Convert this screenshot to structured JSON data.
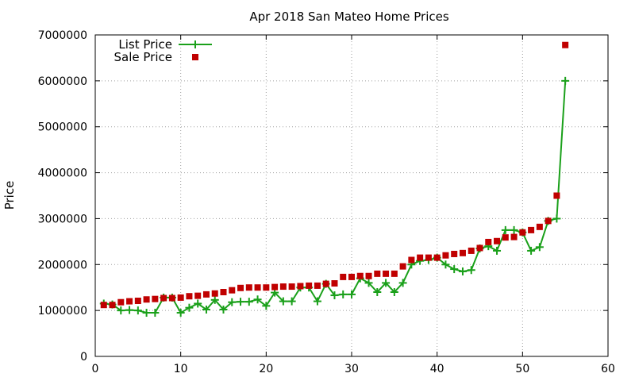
{
  "chart_data": {
    "type": "line",
    "title": "Apr 2018 San Mateo Home Prices",
    "xlabel": "",
    "ylabel": "Price",
    "xlim": [
      0,
      60
    ],
    "ylim": [
      0,
      7000000
    ],
    "xticks": [
      0,
      10,
      20,
      30,
      40,
      50,
      60
    ],
    "yticks": [
      0,
      1000000,
      2000000,
      3000000,
      4000000,
      5000000,
      6000000,
      7000000
    ],
    "grid": true,
    "legend_position": "top-left",
    "colors": {
      "list_price": "#1aa01a",
      "sale_price": "#c00000"
    },
    "series": [
      {
        "name": "List Price",
        "style": "line+plus",
        "x": [
          1,
          2,
          3,
          4,
          5,
          6,
          7,
          8,
          9,
          10,
          11,
          12,
          13,
          14,
          15,
          16,
          17,
          18,
          19,
          20,
          21,
          22,
          23,
          24,
          25,
          26,
          27,
          28,
          29,
          30,
          31,
          32,
          33,
          34,
          35,
          36,
          37,
          38,
          39,
          40,
          41,
          42,
          43,
          44,
          45,
          46,
          47,
          48,
          49,
          50,
          51,
          52,
          53,
          54,
          55
        ],
        "y": [
          1150000,
          1130000,
          1000000,
          1010000,
          1000000,
          950000,
          950000,
          1280000,
          1280000,
          950000,
          1060000,
          1150000,
          1020000,
          1230000,
          1020000,
          1180000,
          1190000,
          1190000,
          1240000,
          1100000,
          1390000,
          1200000,
          1200000,
          1500000,
          1500000,
          1200000,
          1580000,
          1330000,
          1350000,
          1350000,
          1700000,
          1600000,
          1400000,
          1600000,
          1400000,
          1600000,
          2000000,
          2080000,
          2100000,
          2150000,
          2000000,
          1900000,
          1850000,
          1880000,
          2350000,
          2400000,
          2300000,
          2750000,
          2750000,
          2700000,
          2300000,
          2380000,
          2950000,
          3000000,
          6000000
        ]
      },
      {
        "name": "Sale Price",
        "style": "square",
        "x": [
          1,
          2,
          3,
          4,
          5,
          6,
          7,
          8,
          9,
          10,
          11,
          12,
          13,
          14,
          15,
          16,
          17,
          18,
          19,
          20,
          21,
          22,
          23,
          24,
          25,
          26,
          27,
          28,
          29,
          30,
          31,
          32,
          33,
          34,
          35,
          36,
          37,
          38,
          39,
          40,
          41,
          42,
          43,
          44,
          45,
          46,
          47,
          48,
          49,
          50,
          51,
          52,
          53,
          54,
          55
        ],
        "y": [
          1120000,
          1120000,
          1180000,
          1200000,
          1210000,
          1240000,
          1250000,
          1270000,
          1270000,
          1280000,
          1310000,
          1320000,
          1350000,
          1370000,
          1400000,
          1440000,
          1490000,
          1500000,
          1500000,
          1500000,
          1510000,
          1520000,
          1520000,
          1530000,
          1540000,
          1540000,
          1580000,
          1590000,
          1730000,
          1730000,
          1750000,
          1750000,
          1800000,
          1800000,
          1800000,
          1960000,
          2100000,
          2150000,
          2150000,
          2150000,
          2200000,
          2230000,
          2250000,
          2300000,
          2360000,
          2490000,
          2510000,
          2590000,
          2600000,
          2700000,
          2750000,
          2820000,
          2950000,
          3500000,
          6780000
        ]
      }
    ]
  }
}
